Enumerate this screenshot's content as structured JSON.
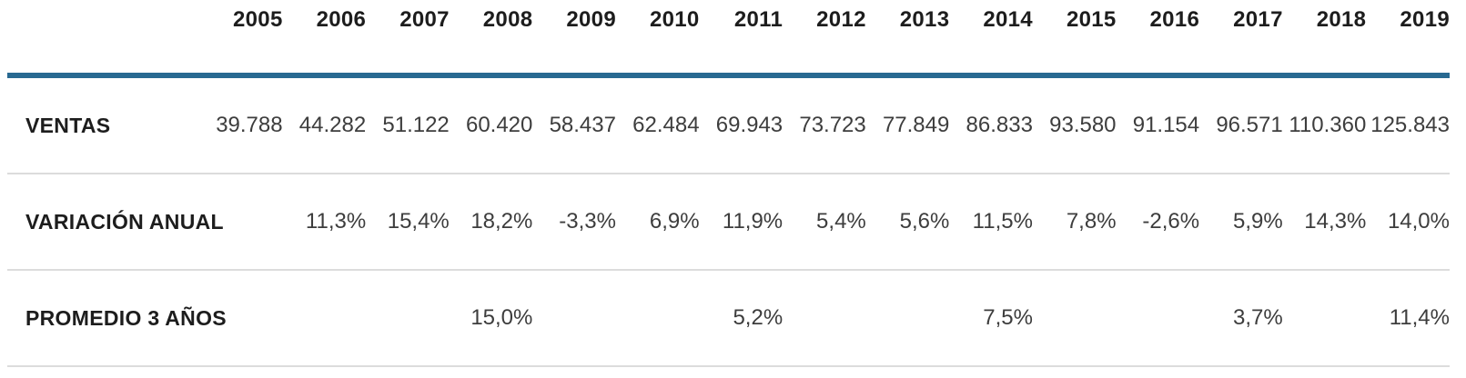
{
  "table": {
    "years": [
      "2005",
      "2006",
      "2007",
      "2008",
      "2009",
      "2010",
      "2011",
      "2012",
      "2013",
      "2014",
      "2015",
      "2016",
      "2017",
      "2018",
      "2019"
    ],
    "rows": [
      {
        "label": "VENTAS",
        "values": [
          "39.788",
          "44.282",
          "51.122",
          "60.420",
          "58.437",
          "62.484",
          "69.943",
          "73.723",
          "77.849",
          "86.833",
          "93.580",
          "91.154",
          "96.571",
          "110.360",
          "125.843"
        ]
      },
      {
        "label": "VARIACIÓN ANUAL",
        "values": [
          "",
          "11,3%",
          "15,4%",
          "18,2%",
          "-3,3%",
          "6,9%",
          "11,9%",
          "5,4%",
          "5,6%",
          "11,5%",
          "7,8%",
          "-2,6%",
          "5,9%",
          "14,3%",
          "14,0%"
        ]
      },
      {
        "label": "PROMEDIO 3 AÑOS",
        "values": [
          "",
          "",
          "",
          "15,0%",
          "",
          "",
          "5,2%",
          "",
          "",
          "7,5%",
          "",
          "",
          "3,7%",
          "",
          "11,4%"
        ]
      }
    ],
    "colors": {
      "header_rule": "#286991",
      "row_divider": "#dcdcdc",
      "header_text": "#1d1d1d",
      "value_text": "#3d3d3d",
      "background": "#ffffff"
    }
  },
  "chart_data": {
    "type": "table",
    "title": "",
    "columns": [
      "2005",
      "2006",
      "2007",
      "2008",
      "2009",
      "2010",
      "2011",
      "2012",
      "2013",
      "2014",
      "2015",
      "2016",
      "2017",
      "2018",
      "2019"
    ],
    "rows": [
      {
        "label": "VENTAS",
        "values": [
          39788,
          44282,
          51122,
          60420,
          58437,
          62484,
          69943,
          73723,
          77849,
          86833,
          93580,
          91154,
          96571,
          110360,
          125843
        ]
      },
      {
        "label": "VARIACIÓN ANUAL",
        "values": [
          null,
          11.3,
          15.4,
          18.2,
          -3.3,
          6.9,
          11.9,
          5.4,
          5.6,
          11.5,
          7.8,
          -2.6,
          5.9,
          14.3,
          14.0
        ],
        "unit": "%"
      },
      {
        "label": "PROMEDIO 3 AÑOS",
        "values": [
          null,
          null,
          null,
          15.0,
          null,
          null,
          5.2,
          null,
          null,
          7.5,
          null,
          null,
          3.7,
          null,
          11.4
        ],
        "unit": "%"
      }
    ],
    "layout_hints": {
      "header_rule_color": "#286991",
      "grid": "horizontal-dividers-only",
      "first_column": "row labels, left aligned",
      "data_columns": "right aligned"
    }
  }
}
